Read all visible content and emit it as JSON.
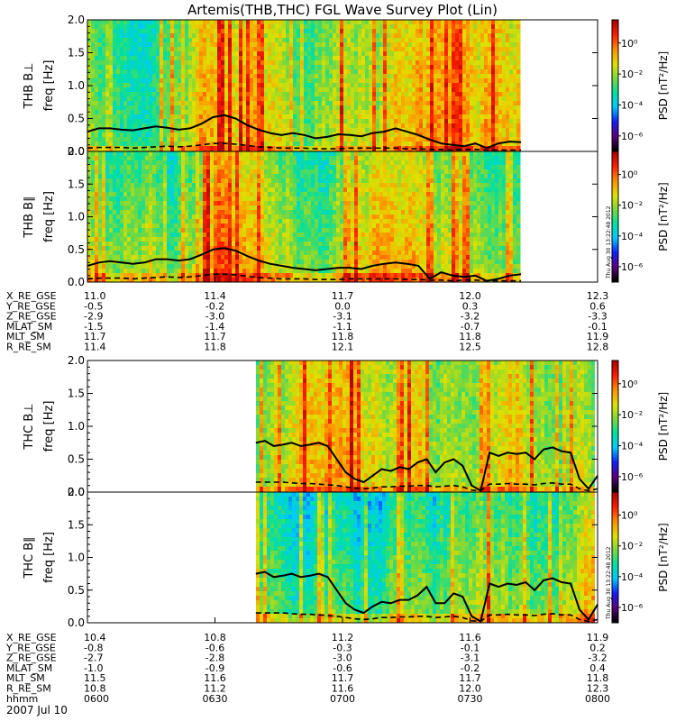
{
  "title": "Artemis(THB,THC) FGL Wave Survey Plot (Lin)",
  "colorbar": {
    "label": "PSD [nT²/Hz]",
    "tick_labels": [
      "10⁰",
      "10⁻²",
      "10⁻⁴",
      "10⁻⁶"
    ],
    "exponents": [
      0,
      -2,
      -4,
      -6
    ],
    "range_exp": [
      -7,
      1.5
    ]
  },
  "timestamp_label": "Thu Aug 30 13:22:48 2012",
  "colors": {
    "colormap": [
      "#000000",
      "#5a0080",
      "#1020ff",
      "#00c8ff",
      "#00e0a0",
      "#7ad83a",
      "#e0e000",
      "#ff9000",
      "#ff2000",
      "#b00000"
    ],
    "median_line": "#000000"
  },
  "chart_data": [
    {
      "type": "heatmap",
      "panel": "THB Bperp",
      "label": "THB B⊥",
      "ylabel": "freq [Hz]",
      "ylim": [
        0,
        2
      ],
      "yticks": [
        "0.0",
        "0.5",
        "1.0",
        "1.5",
        "2.0"
      ],
      "data_x_range": [
        0.0,
        0.85
      ],
      "median_freq": [
        0.3,
        0.35,
        0.35,
        0.33,
        0.32,
        0.35,
        0.38,
        0.36,
        0.33,
        0.35,
        0.42,
        0.52,
        0.55,
        0.5,
        0.4,
        0.33,
        0.28,
        0.25,
        0.28,
        0.25,
        0.2,
        0.22,
        0.26,
        0.25,
        0.23,
        0.28,
        0.3,
        0.35,
        0.3,
        0.25,
        0.18,
        0.12,
        0.1,
        0.08,
        0.12,
        0.05,
        0.12,
        0.15,
        0.14
      ],
      "lower_freq": [
        0.05,
        0.06,
        0.06,
        0.06,
        0.05,
        0.06,
        0.07,
        0.08,
        0.07,
        0.08,
        0.1,
        0.12,
        0.12,
        0.11,
        0.09,
        0.07,
        0.06,
        0.05,
        0.05,
        0.05,
        0.04,
        0.04,
        0.04,
        0.05,
        0.05,
        0.05,
        0.05,
        0.05,
        0.04,
        0.04,
        0.03,
        0.03,
        0.02,
        0.03,
        0.03,
        0.02,
        0.02,
        0.02,
        0.02
      ]
    },
    {
      "type": "heatmap",
      "panel": "THB Bpar",
      "label": "THB B∥",
      "ylabel": "freq [Hz]",
      "ylim": [
        0,
        2
      ],
      "yticks": [
        "0.0",
        "0.5",
        "1.0",
        "1.5",
        "2.0"
      ],
      "data_x_range": [
        0.0,
        0.85
      ],
      "median_freq": [
        0.25,
        0.3,
        0.32,
        0.3,
        0.28,
        0.3,
        0.35,
        0.35,
        0.33,
        0.35,
        0.42,
        0.5,
        0.52,
        0.48,
        0.4,
        0.33,
        0.28,
        0.25,
        0.22,
        0.2,
        0.18,
        0.2,
        0.22,
        0.22,
        0.2,
        0.25,
        0.28,
        0.3,
        0.28,
        0.25,
        0.05,
        0.15,
        0.1,
        0.08,
        0.1,
        0.02,
        0.05,
        0.1,
        0.12
      ],
      "lower_freq": [
        0.05,
        0.06,
        0.06,
        0.06,
        0.05,
        0.06,
        0.07,
        0.08,
        0.07,
        0.08,
        0.1,
        0.12,
        0.12,
        0.11,
        0.09,
        0.07,
        0.06,
        0.05,
        0.05,
        0.05,
        0.04,
        0.04,
        0.04,
        0.05,
        0.05,
        0.05,
        0.05,
        0.05,
        0.04,
        0.04,
        0.03,
        0.03,
        0.02,
        0.03,
        0.03,
        0.02,
        0.02,
        0.02,
        0.02
      ]
    },
    {
      "type": "heatmap",
      "panel": "THC Bperp",
      "label": "THC B⊥",
      "ylabel": "freq [Hz]",
      "ylim": [
        0,
        2
      ],
      "yticks": [
        "0.0",
        "0.5",
        "1.0",
        "1.5",
        "2.0"
      ],
      "data_x_range": [
        0.33,
        1.0
      ],
      "median_freq": [
        0.75,
        0.78,
        0.7,
        0.72,
        0.75,
        0.7,
        0.72,
        0.75,
        0.7,
        0.5,
        0.3,
        0.2,
        0.15,
        0.25,
        0.35,
        0.32,
        0.38,
        0.35,
        0.45,
        0.5,
        0.3,
        0.45,
        0.5,
        0.4,
        0.1,
        0.02,
        0.6,
        0.55,
        0.6,
        0.58,
        0.6,
        0.5,
        0.65,
        0.68,
        0.62,
        0.6,
        0.2,
        0.05,
        0.25
      ],
      "lower_freq": [
        0.15,
        0.15,
        0.15,
        0.15,
        0.14,
        0.13,
        0.13,
        0.12,
        0.11,
        0.1,
        0.08,
        0.06,
        0.05,
        0.06,
        0.08,
        0.08,
        0.09,
        0.09,
        0.1,
        0.1,
        0.08,
        0.09,
        0.1,
        0.08,
        0.03,
        0.02,
        0.12,
        0.12,
        0.13,
        0.12,
        0.12,
        0.11,
        0.13,
        0.14,
        0.12,
        0.12,
        0.05,
        0.02,
        0.05
      ]
    },
    {
      "type": "heatmap",
      "panel": "THC Bpar",
      "label": "THC B∥",
      "ylabel": "freq [Hz]",
      "ylim": [
        0,
        2
      ],
      "yticks": [
        "0.0",
        "0.5",
        "1.0",
        "1.5",
        "2.0"
      ],
      "data_x_range": [
        0.33,
        1.0
      ],
      "median_freq": [
        0.75,
        0.78,
        0.7,
        0.72,
        0.75,
        0.7,
        0.72,
        0.75,
        0.7,
        0.5,
        0.3,
        0.2,
        0.15,
        0.25,
        0.32,
        0.3,
        0.35,
        0.35,
        0.42,
        0.55,
        0.3,
        0.3,
        0.45,
        0.4,
        0.1,
        0.02,
        0.6,
        0.55,
        0.6,
        0.58,
        0.62,
        0.5,
        0.65,
        0.68,
        0.62,
        0.6,
        0.2,
        0.05,
        0.28
      ],
      "lower_freq": [
        0.15,
        0.15,
        0.15,
        0.15,
        0.14,
        0.13,
        0.13,
        0.12,
        0.11,
        0.1,
        0.08,
        0.06,
        0.05,
        0.06,
        0.08,
        0.08,
        0.09,
        0.09,
        0.1,
        0.1,
        0.08,
        0.09,
        0.1,
        0.08,
        0.03,
        0.02,
        0.12,
        0.12,
        0.13,
        0.12,
        0.12,
        0.11,
        0.13,
        0.14,
        0.12,
        0.12,
        0.05,
        0.02,
        0.05
      ]
    }
  ],
  "ephemeris_thb": [
    {
      "label": "X_RE_GSE",
      "values": [
        "11.0",
        "11.4",
        "11.7",
        "12.0",
        "12.3"
      ]
    },
    {
      "label": "Y_RE_GSE",
      "values": [
        "-0.5",
        "-0.2",
        "0.0",
        "0.3",
        "0.6"
      ]
    },
    {
      "label": "Z_RE_GSE",
      "values": [
        "-2.9",
        "-3.0",
        "-3.1",
        "-3.2",
        "-3.3"
      ]
    },
    {
      "label": "MLAT_SM",
      "values": [
        "-1.5",
        "-1.4",
        "-1.1",
        "-0.7",
        "-0.1"
      ]
    },
    {
      "label": "MLT_SM",
      "values": [
        "11.7",
        "11.7",
        "11.8",
        "11.8",
        "11.9"
      ]
    },
    {
      "label": "R_RE_SM",
      "values": [
        "11.4",
        "11.8",
        "12.1",
        "12.5",
        "12.8"
      ]
    }
  ],
  "ephemeris_thc": [
    {
      "label": "X_RE_GSE",
      "values": [
        "10.4",
        "10.8",
        "11.2",
        "11.6",
        "11.9"
      ]
    },
    {
      "label": "Y_RE_GSE",
      "values": [
        "-0.8",
        "-0.6",
        "-0.3",
        "-0.1",
        "0.2"
      ]
    },
    {
      "label": "Z_RE_GSE",
      "values": [
        "-2.7",
        "-2.8",
        "-3.0",
        "-3.1",
        "-3.2"
      ]
    },
    {
      "label": "MLAT_SM",
      "values": [
        "-1.0",
        "-0.9",
        "-0.6",
        "-0.2",
        "0.4"
      ]
    },
    {
      "label": "MLT_SM",
      "values": [
        "11.5",
        "11.6",
        "11.7",
        "11.7",
        "11.8"
      ]
    },
    {
      "label": "R_RE_SM",
      "values": [
        "10.8",
        "11.2",
        "11.6",
        "12.0",
        "12.3"
      ]
    },
    {
      "label": "hhmm",
      "values": [
        "0600",
        "0630",
        "0700",
        "0730",
        "0800"
      ]
    }
  ],
  "date_label": "2007 Jul 10"
}
